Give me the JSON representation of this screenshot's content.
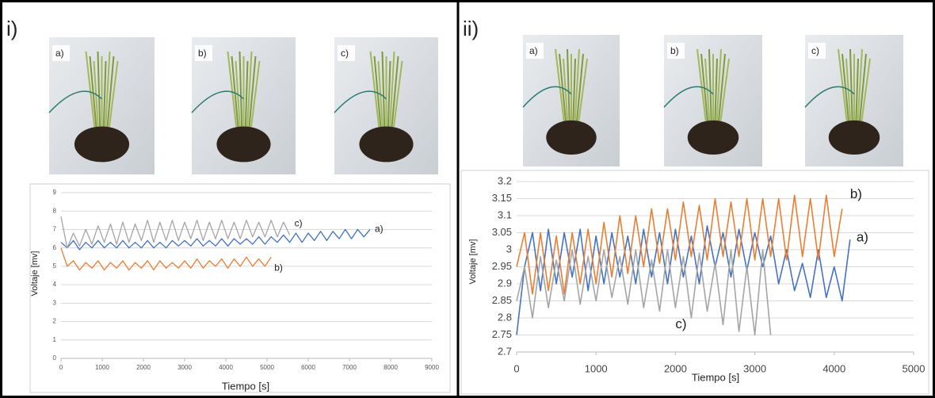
{
  "panels": [
    {
      "label": "i)",
      "photos": [
        "a)",
        "b)",
        "c)"
      ]
    },
    {
      "label": "ii)",
      "photos": [
        "a)",
        "b)",
        "c)"
      ]
    }
  ],
  "chart_data": [
    {
      "type": "line",
      "x_label": "Tiempo [s]",
      "y_label": "Voltaje [mv]",
      "x": [
        0,
        150,
        300,
        450,
        600,
        750,
        900,
        1050,
        1200,
        1350,
        1500,
        1650,
        1800,
        1950,
        2100,
        2250,
        2400,
        2550,
        2700,
        2850,
        3000,
        3150,
        3300,
        3450,
        3600,
        3750,
        3900,
        4050,
        4200,
        4350,
        4500,
        4650,
        4800,
        4950,
        5100,
        5250,
        5400,
        5550,
        5700,
        5850,
        6000,
        6150,
        6300,
        6450,
        6600,
        6750,
        6900,
        7050,
        7200,
        7350,
        7500
      ],
      "series": [
        {
          "name": "a)",
          "color": "#4472c4",
          "values": [
            6.3,
            6.0,
            6.4,
            5.9,
            6.3,
            6.0,
            6.4,
            6.0,
            6.3,
            6.0,
            6.4,
            6.0,
            6.3,
            6.0,
            6.4,
            6.0,
            6.3,
            6.0,
            6.4,
            6.1,
            6.4,
            6.1,
            6.5,
            6.1,
            6.4,
            6.1,
            6.5,
            6.1,
            6.5,
            6.2,
            6.5,
            6.2,
            6.6,
            6.2,
            6.6,
            6.3,
            6.7,
            6.3,
            6.8,
            6.3,
            6.8,
            6.4,
            6.9,
            6.4,
            6.9,
            6.5,
            7.0,
            6.5,
            7.0,
            6.6,
            7.0
          ]
        },
        {
          "name": "b)",
          "color": "#ed7d31",
          "values": [
            6.0,
            5.0,
            5.3,
            4.8,
            5.2,
            4.9,
            5.3,
            4.8,
            5.2,
            4.9,
            5.3,
            4.8,
            5.2,
            4.9,
            5.3,
            4.8,
            5.3,
            4.9,
            5.2,
            4.9,
            5.3,
            4.9,
            5.4,
            4.9,
            5.3,
            5.0,
            5.4,
            4.9,
            5.4,
            5.0,
            5.5,
            5.0,
            5.4,
            5.0,
            5.5,
            null,
            null,
            null,
            null,
            null,
            null,
            null,
            null,
            null,
            null,
            null,
            null,
            null,
            null,
            null,
            null
          ]
        },
        {
          "name": "c)",
          "color": "#a5a5a5",
          "values": [
            7.7,
            6.0,
            6.8,
            6.1,
            7.0,
            6.2,
            7.2,
            6.3,
            7.3,
            6.2,
            7.4,
            6.3,
            7.3,
            6.4,
            7.5,
            6.3,
            7.4,
            6.4,
            7.5,
            6.4,
            7.4,
            6.5,
            7.5,
            6.4,
            7.4,
            6.5,
            7.5,
            6.5,
            7.4,
            6.5,
            7.5,
            6.6,
            7.4,
            6.6,
            7.5,
            6.6,
            7.4,
            6.7,
            null,
            null,
            null,
            null,
            null,
            null,
            null,
            null,
            null,
            null,
            null,
            null,
            null
          ]
        }
      ],
      "xlim": [
        0,
        9000
      ],
      "xticks": [
        0,
        1000,
        2000,
        3000,
        4000,
        5000,
        6000,
        7000,
        8000,
        9000
      ],
      "ylim": [
        0,
        9
      ],
      "yticks": [
        0,
        1,
        2,
        3,
        4,
        5,
        6,
        7,
        8,
        9
      ],
      "grid": true
    },
    {
      "type": "line",
      "x_label": "Tiempo [s]",
      "y_label": "Voltaje [mv]",
      "x": [
        0,
        100,
        200,
        300,
        400,
        500,
        600,
        700,
        800,
        900,
        1000,
        1100,
        1200,
        1300,
        1400,
        1500,
        1600,
        1700,
        1800,
        1900,
        2000,
        2100,
        2200,
        2300,
        2400,
        2500,
        2600,
        2700,
        2800,
        2900,
        3000,
        3100,
        3200,
        3300,
        3400,
        3500,
        3600,
        3700,
        3800,
        3900,
        4000,
        4100,
        4200
      ],
      "series": [
        {
          "name": "a)",
          "color": "#4472c4",
          "values": [
            2.75,
            2.95,
            3.05,
            2.88,
            3.06,
            2.9,
            3.05,
            2.92,
            3.06,
            2.88,
            3.04,
            2.9,
            3.05,
            2.92,
            3.04,
            2.9,
            3.06,
            2.92,
            3.05,
            2.9,
            3.06,
            2.92,
            3.04,
            2.9,
            3.07,
            2.95,
            3.05,
            2.92,
            3.06,
            2.94,
            3.05,
            2.95,
            3.04,
            2.9,
            3.0,
            2.88,
            2.96,
            2.86,
            3.0,
            2.86,
            2.95,
            2.85,
            3.03
          ]
        },
        {
          "name": "b)",
          "color": "#ed7d31",
          "values": [
            2.95,
            3.05,
            2.87,
            3.05,
            2.88,
            3.04,
            2.87,
            3.05,
            2.9,
            3.06,
            2.9,
            3.08,
            2.92,
            3.1,
            2.93,
            3.1,
            2.95,
            3.12,
            2.96,
            3.12,
            2.97,
            3.14,
            2.98,
            3.13,
            2.97,
            3.15,
            2.98,
            3.14,
            2.98,
            3.15,
            2.97,
            3.15,
            2.98,
            3.15,
            2.97,
            3.16,
            2.98,
            3.15,
            2.97,
            3.16,
            2.98,
            3.12,
            null
          ]
        },
        {
          "name": "c)",
          "color": "#a5a5a5",
          "values": [
            2.85,
            2.95,
            2.8,
            2.98,
            2.83,
            2.97,
            2.85,
            3.0,
            2.84,
            2.98,
            2.85,
            3.0,
            2.86,
            2.98,
            2.84,
            3.0,
            2.83,
            2.97,
            2.82,
            3.0,
            2.83,
            2.98,
            2.8,
            2.99,
            2.82,
            2.96,
            2.78,
            3.0,
            2.76,
            2.95,
            2.75,
            3.0,
            2.75,
            null,
            null,
            null,
            null,
            null,
            null,
            null,
            null,
            null,
            null
          ]
        }
      ],
      "xlim": [
        0,
        5000
      ],
      "xticks": [
        0,
        1000,
        2000,
        3000,
        4000,
        5000
      ],
      "ylim": [
        2.7,
        3.2
      ],
      "yticks": [
        2.7,
        2.75,
        2.8,
        2.85,
        2.9,
        2.95,
        3,
        3.05,
        3.1,
        3.15,
        3.2
      ],
      "grid": true
    }
  ]
}
